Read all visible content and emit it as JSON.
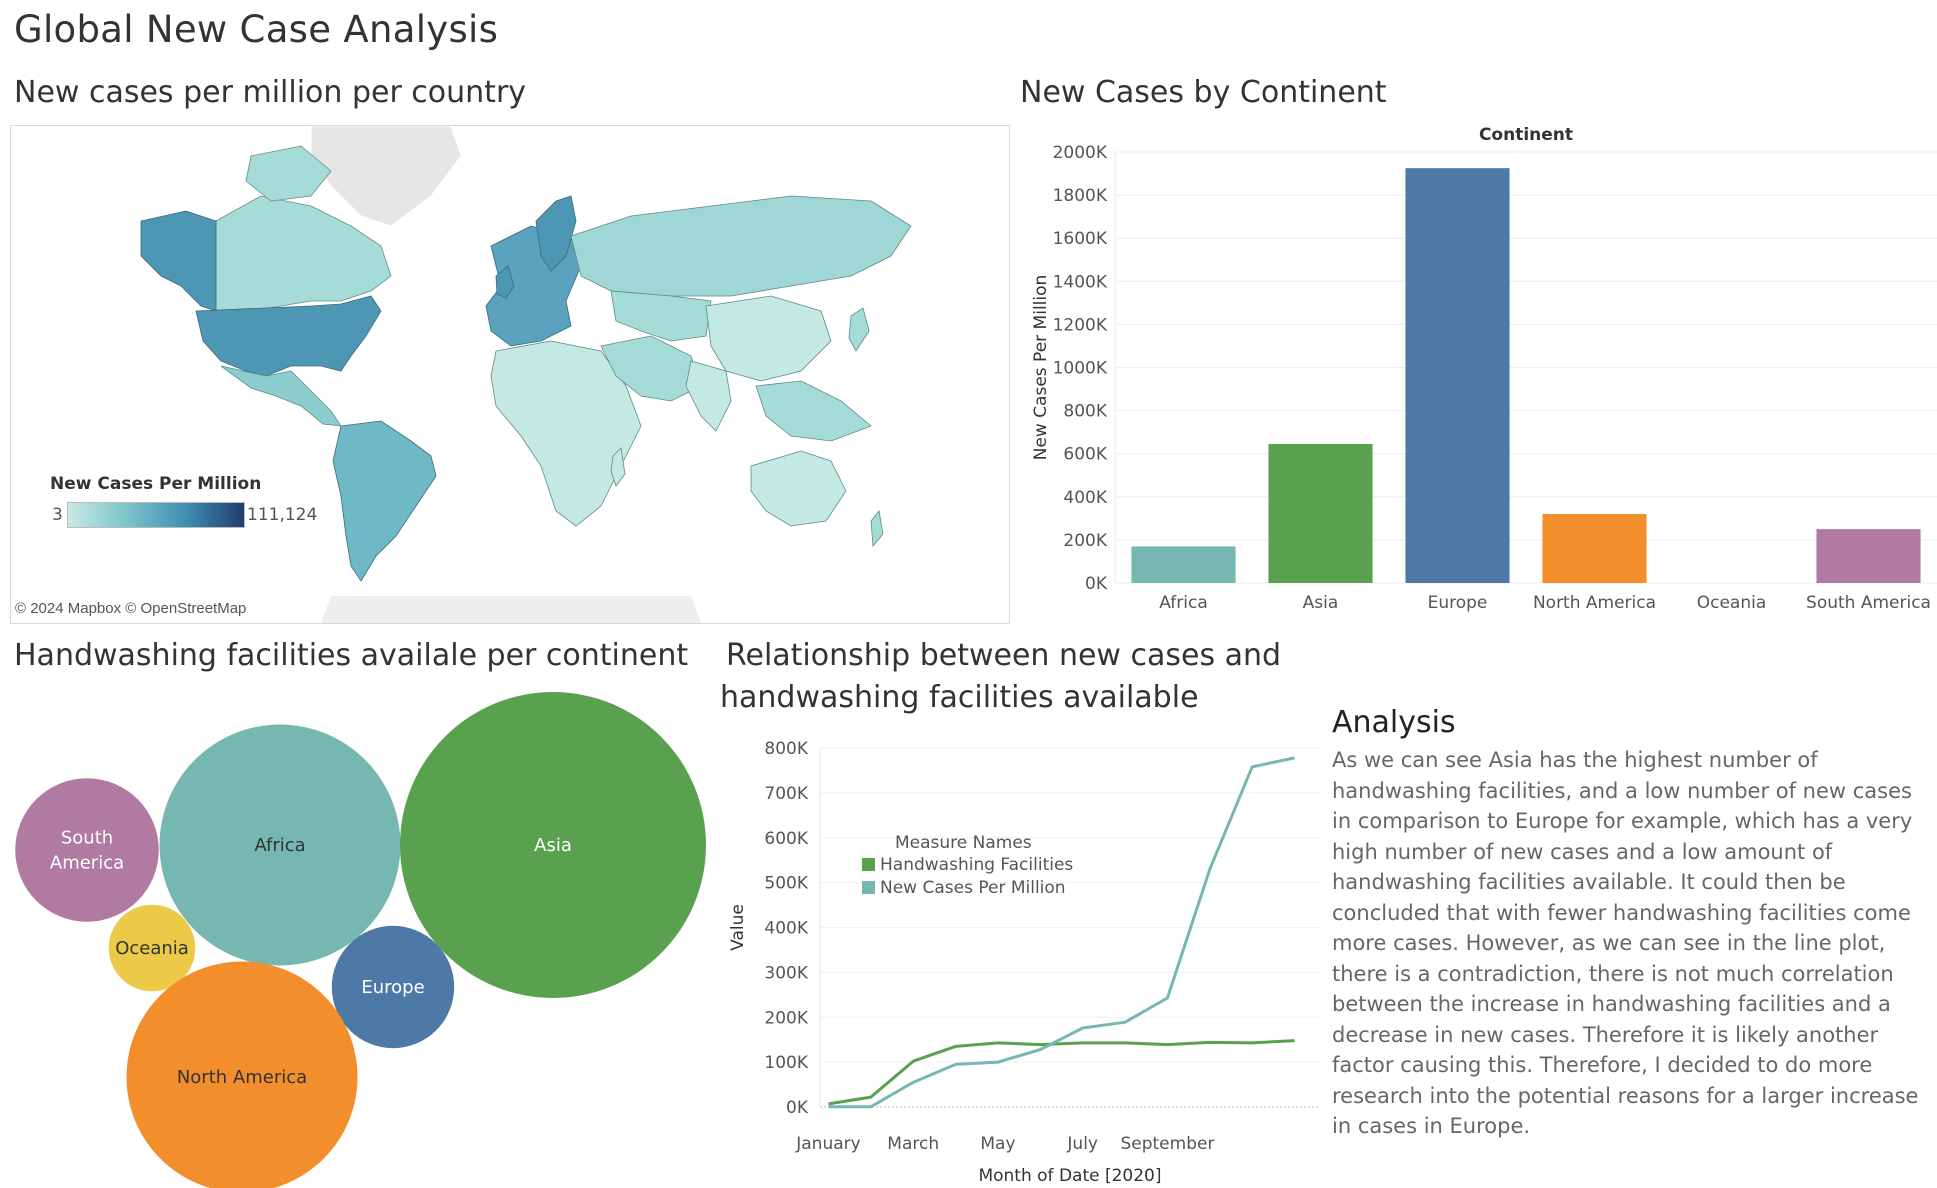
{
  "dashboard": {
    "title": "Global New Case Analysis"
  },
  "map": {
    "title": "New cases per million per country",
    "legend_title": "New Cases Per Million",
    "legend_min": "3",
    "legend_max": "111,124",
    "attribution": "© 2024 Mapbox © OpenStreetMap"
  },
  "bar": {
    "title": "New Cases by Continent"
  },
  "bubble": {
    "title": "Handwashing facilities availale per continent"
  },
  "line": {
    "title_line1": "Relationship between new cases and",
    "title_line2": "handwashing facilities available"
  },
  "analysis": {
    "title": "Analysis",
    "body": "As we can see Asia has the highest number of handwashing facilities, and a low number of new cases in comparison to Europe for example, which has a very high number of new cases and a low amount of handwashing facilities available. It could then be concluded that with fewer handwashing facilities come more cases. However, as we can see in the line plot, there is a contradiction, there is not much correlation between the increase in handwashing facilities and a decrease in new cases. Therefore it is likely another factor causing this. Therefore, I decided to do more research into the potential reasons for a larger increase in cases in Europe."
  },
  "colors": {
    "africa": "#76b7b2",
    "asia": "#59a14f",
    "europe": "#4e79a7",
    "north_america": "#f28e2b",
    "oceania": "#edc948",
    "south_america": "#b07aa1"
  },
  "chart_data": [
    {
      "type": "bar",
      "header": "Continent",
      "categories": [
        "Africa",
        "Asia",
        "Europe",
        "North America",
        "Oceania",
        "South America"
      ],
      "values": [
        170000,
        645000,
        1925000,
        320000,
        0,
        250000
      ],
      "ylabel": "New Cases Per Million",
      "ylim": [
        0,
        2000000
      ],
      "yticks": [
        "0K",
        "200K",
        "400K",
        "600K",
        "800K",
        "1000K",
        "1200K",
        "1400K",
        "1600K",
        "1800K",
        "2000K"
      ],
      "ytick_values": [
        0,
        200000,
        400000,
        600000,
        800000,
        1000000,
        1200000,
        1400000,
        1600000,
        1800000,
        2000000
      ],
      "grid": true
    },
    {
      "type": "scatter",
      "categories": [
        "South America",
        "Africa",
        "Asia",
        "Oceania",
        "Europe",
        "North America"
      ],
      "labels": [
        "South\nAmerica",
        "Africa",
        "Asia",
        "Oceania",
        "Europe",
        "North America"
      ],
      "relative_sizes": [
        0.22,
        0.62,
        1.0,
        0.08,
        0.16,
        0.57
      ]
    },
    {
      "type": "line",
      "xlabel": "Month of Date [2020]",
      "ylabel": "Value",
      "x": [
        1,
        2,
        3,
        4,
        5,
        6,
        7,
        8,
        9,
        10,
        11,
        12
      ],
      "xticks": [
        "January",
        "March",
        "May",
        "July",
        "September"
      ],
      "xtick_values": [
        1,
        3,
        5,
        7,
        9
      ],
      "ylim": [
        0,
        800000
      ],
      "yticks": [
        "0K",
        "100K",
        "200K",
        "300K",
        "400K",
        "500K",
        "600K",
        "700K",
        "800K"
      ],
      "ytick_values": [
        0,
        100000,
        200000,
        300000,
        400000,
        500000,
        600000,
        700000,
        800000
      ],
      "legend_title": "Measure Names",
      "legend_position": "top-left",
      "series": [
        {
          "name": "Handwashing Facilities",
          "values": [
            7000,
            22000,
            102000,
            135000,
            143000,
            139000,
            143000,
            143000,
            139000,
            144000,
            143000,
            148000
          ]
        },
        {
          "name": "New Cases Per Million",
          "values": [
            500,
            500,
            55000,
            95000,
            100000,
            128000,
            176000,
            189000,
            243000,
            530000,
            758000,
            778000
          ]
        }
      ]
    }
  ]
}
